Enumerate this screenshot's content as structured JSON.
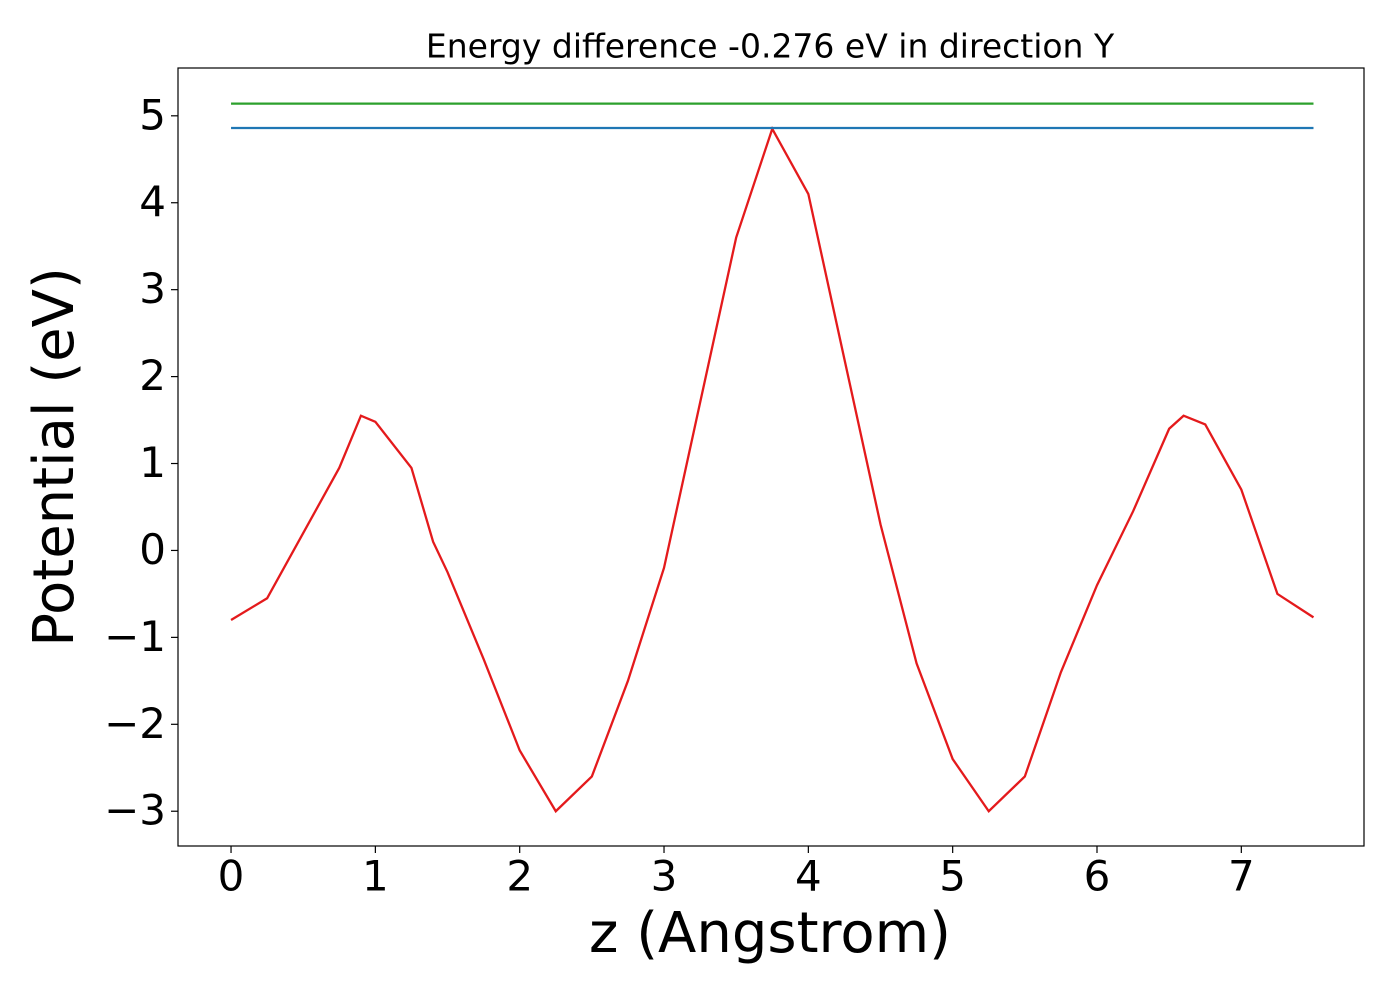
{
  "chart_data": {
    "type": "line",
    "title": "Energy difference -0.276 eV in direction Y",
    "xlabel": "z (Angstrom)",
    "ylabel": "Potential (eV)",
    "xlim": [
      -0.3675,
      7.85
    ],
    "ylim": [
      -3.4,
      5.55
    ],
    "xticks": [
      0,
      1,
      2,
      3,
      4,
      5,
      6,
      7
    ],
    "yticks": [
      {
        "value": -3,
        "label": "−3"
      },
      {
        "value": -2,
        "label": "−2"
      },
      {
        "value": -1,
        "label": "−1"
      },
      0,
      1,
      2,
      3,
      4,
      5
    ],
    "grid": false,
    "series": [
      {
        "color": "#e41a1c",
        "x": [
          0,
          0.25,
          0.5,
          0.75,
          0.9,
          1.0,
          1.25,
          1.4,
          1.5,
          1.75,
          2.0,
          2.25,
          2.5,
          2.75,
          3.0,
          3.25,
          3.5,
          3.75,
          4.0,
          4.25,
          4.5,
          4.75,
          5.0,
          5.25,
          5.5,
          5.75,
          6.0,
          6.25,
          6.5,
          6.6,
          6.75,
          7.0,
          7.25,
          7.5
        ],
        "values": [
          -0.8,
          -0.55,
          0.2,
          0.95,
          1.55,
          1.48,
          0.95,
          0.1,
          -0.25,
          -1.25,
          -2.3,
          -3.0,
          -2.6,
          -1.5,
          -0.2,
          1.7,
          3.6,
          4.85,
          4.1,
          2.2,
          0.3,
          -1.3,
          -2.4,
          -3.0,
          -2.6,
          -1.4,
          -0.4,
          0.45,
          1.4,
          1.55,
          1.45,
          0.7,
          -0.5,
          -0.77
        ]
      },
      {
        "color": "#2ca02c",
        "x": [
          0,
          7.5
        ],
        "values": [
          5.14,
          5.14
        ]
      },
      {
        "color": "#1f77b4",
        "x": [
          0,
          7.5
        ],
        "values": [
          4.86,
          4.86
        ]
      }
    ]
  }
}
